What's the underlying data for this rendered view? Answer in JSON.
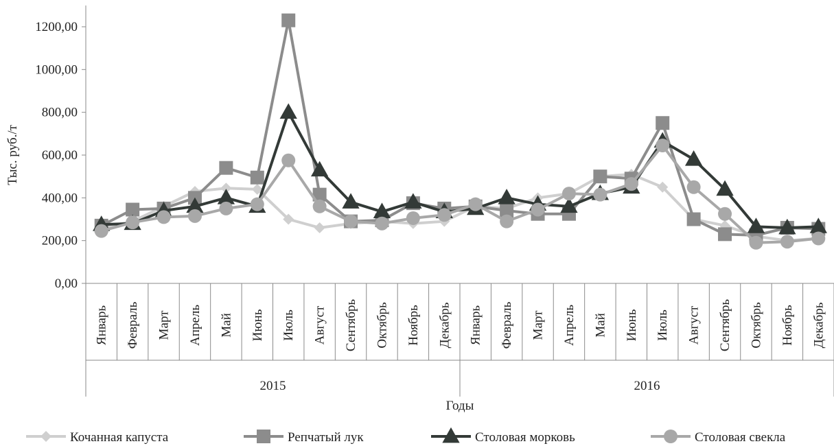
{
  "chart_data": {
    "type": "line",
    "ylabel": "Тыс. руб./т",
    "xlabel": "Годы",
    "ylim": [
      0,
      1200
    ],
    "y_ticks": [
      "0,00",
      "200,00",
      "400,00",
      "600,00",
      "800,00",
      "1000,00",
      "1200,00"
    ],
    "years": [
      "2015",
      "2016"
    ],
    "categories": [
      "Январь",
      "Февраль",
      "Март",
      "Апрель",
      "Май",
      "Июнь",
      "Июль",
      "Август",
      "Сентябрь",
      "Октябрь",
      "Ноябрь",
      "Декабрь",
      "Январь",
      "Февраль",
      "Март",
      "Апрель",
      "Май",
      "Июнь",
      "Июль",
      "Август",
      "Сентябрь",
      "Октябрь",
      "Ноябрь",
      "Декабрь"
    ],
    "grid": false,
    "legend_position": "bottom",
    "series": [
      {
        "name": "Кочанная капуста",
        "color": "#cfcfcf",
        "marker": "diamond",
        "values": [
          260,
          290,
          360,
          430,
          445,
          440,
          300,
          260,
          280,
          290,
          280,
          290,
          360,
          350,
          400,
          420,
          500,
          510,
          450,
          300,
          270,
          220,
          200,
          210
        ]
      },
      {
        "name": "Репчатый лук",
        "color": "#8c8c8c",
        "marker": "square",
        "values": [
          270,
          345,
          350,
          400,
          540,
          495,
          1230,
          415,
          290,
          295,
          375,
          350,
          360,
          340,
          325,
          325,
          500,
          490,
          750,
          300,
          230,
          225,
          260,
          255
        ]
      },
      {
        "name": "Столовая морковь",
        "color": "#333a37",
        "marker": "triangle",
        "values": [
          275,
          280,
          340,
          360,
          400,
          360,
          800,
          530,
          380,
          335,
          380,
          335,
          350,
          400,
          370,
          360,
          420,
          450,
          665,
          580,
          440,
          265,
          260,
          265
        ]
      },
      {
        "name": "Столовая свекла",
        "color": "#a8a8a8",
        "marker": "circle",
        "values": [
          245,
          285,
          310,
          315,
          350,
          370,
          575,
          360,
          290,
          280,
          305,
          320,
          370,
          290,
          345,
          420,
          415,
          465,
          645,
          450,
          325,
          190,
          195,
          210
        ]
      }
    ]
  }
}
